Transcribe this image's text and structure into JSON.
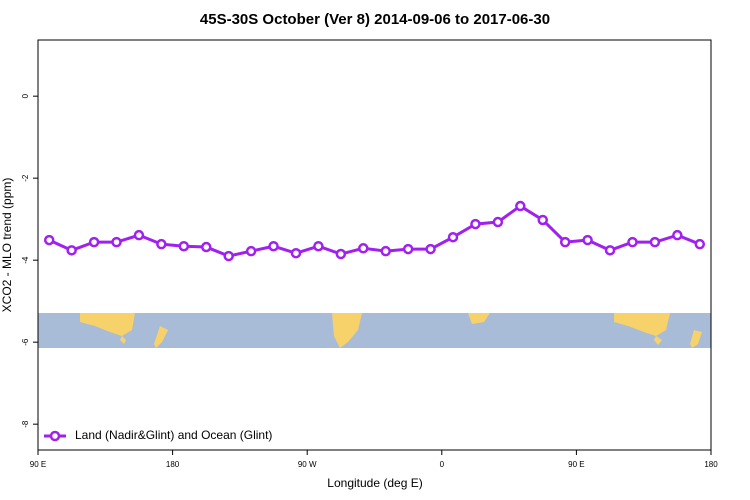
{
  "chart_data": {
    "type": "line",
    "title": "45S-30S October (Ver 8)   2014-09-06 to 2017-06-30",
    "x_label": "Longitude (deg E)",
    "y_label": "XCO2 - MLO trend (ppm)",
    "x": [
      97.5,
      112.5,
      127.5,
      142.5,
      157.5,
      172.5,
      187.5,
      202.5,
      217.5,
      232.5,
      247.5,
      262.5,
      277.5,
      292.5,
      307.5,
      322.5,
      337.5,
      352.5,
      367.5,
      382.5,
      397.5,
      412.5,
      427.5,
      442.5,
      457.5,
      472.5,
      487.5,
      502.5,
      517.5,
      532.5
    ],
    "series": [
      {
        "name": "Land (Nadir&Glint) and Ocean (Glint)",
        "color": "#a020f0",
        "values": [
          -3.51,
          -3.76,
          -3.56,
          -3.56,
          -3.39,
          -3.61,
          -3.66,
          -3.68,
          -3.9,
          -3.78,
          -3.66,
          -3.83,
          -3.66,
          -3.85,
          -3.71,
          -3.78,
          -3.73,
          -3.73,
          -3.44,
          -3.12,
          -3.07,
          -2.68,
          -3.02,
          -3.56,
          -3.51,
          -3.76,
          -3.56,
          -3.56,
          -3.39,
          -3.61
        ]
      }
    ],
    "xlim": [
      90,
      540
    ],
    "xticks": [
      {
        "value": 90,
        "label": "90 E"
      },
      {
        "value": 180,
        "label": "180"
      },
      {
        "value": 270,
        "label": "90 W"
      },
      {
        "value": 360,
        "label": "0"
      },
      {
        "value": 450,
        "label": "90 E"
      },
      {
        "value": 540,
        "label": "180"
      }
    ],
    "ylim": [
      -8.63,
      1.37
    ],
    "yticks": [
      0,
      -2,
      -4,
      -6,
      -8
    ],
    "legend": "bottom-left"
  }
}
